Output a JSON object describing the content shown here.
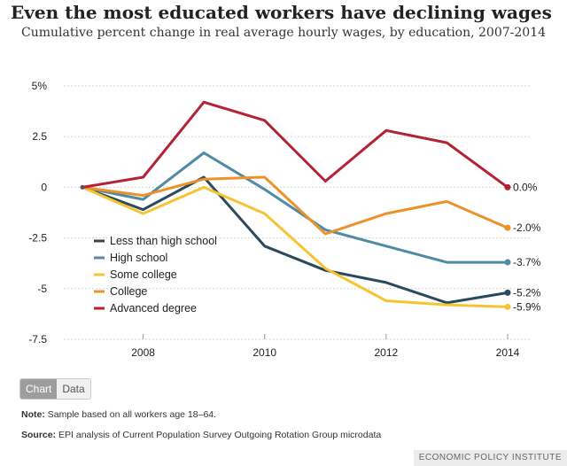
{
  "header": {
    "title": "Even the most educated workers have declining wages",
    "subtitle": "Cumulative percent change in real average hourly wages, by education, 2007-2014"
  },
  "chart_data": {
    "type": "line",
    "title": "Even the most educated workers have declining wages",
    "subtitle": "Cumulative percent change in real average hourly wages, by education, 2007-2014",
    "x": [
      2007,
      2008,
      2009,
      2010,
      2011,
      2012,
      2013,
      2014
    ],
    "xticks": [
      2008,
      2010,
      2012,
      2014
    ],
    "xlim": [
      2007,
      2014
    ],
    "ylim": [
      -7.5,
      5
    ],
    "yticks": [
      5,
      2.5,
      0,
      -2.5,
      -5,
      -7.5
    ],
    "ytick_labels": [
      "5%",
      "2.5",
      "0",
      "-2.5",
      "-5",
      "-7.5"
    ],
    "grid": true,
    "legend_position": "bottom-left",
    "series": [
      {
        "name": "Less than high school",
        "color": "#2b4a5c",
        "values": [
          0,
          -1.1,
          0.5,
          -2.9,
          -4.1,
          -4.7,
          -5.7,
          -5.2
        ],
        "end_label": "-5.2%"
      },
      {
        "name": "High school",
        "color": "#4f8aa6",
        "values": [
          0,
          -0.6,
          1.7,
          -0.1,
          -2.1,
          -2.9,
          -3.7,
          -3.7
        ],
        "end_label": "-3.7%"
      },
      {
        "name": "Some college",
        "color": "#f5c531",
        "values": [
          0,
          -1.3,
          0.0,
          -1.3,
          -4.0,
          -5.6,
          -5.8,
          -5.9
        ],
        "end_label": "-5.9%"
      },
      {
        "name": "College",
        "color": "#ec922a",
        "values": [
          0,
          -0.4,
          0.4,
          0.5,
          -2.3,
          -1.3,
          -0.7,
          -2.0
        ],
        "end_label": "-2.0%"
      },
      {
        "name": "Advanced degree",
        "color": "#b32235",
        "values": [
          0,
          0.5,
          4.2,
          3.3,
          0.3,
          2.8,
          2.2,
          0.0
        ],
        "end_label": "0.0%"
      }
    ]
  },
  "toggle": {
    "chart_label": "Chart",
    "data_label": "Data"
  },
  "footer": {
    "note_label": "Note:",
    "note_text": " Sample based on all workers age 18–64.",
    "source_label": "Source:",
    "source_text": " EPI analysis of Current Population Survey Outgoing Rotation Group microdata",
    "brand": "ECONOMIC POLICY INSTITUTE"
  }
}
